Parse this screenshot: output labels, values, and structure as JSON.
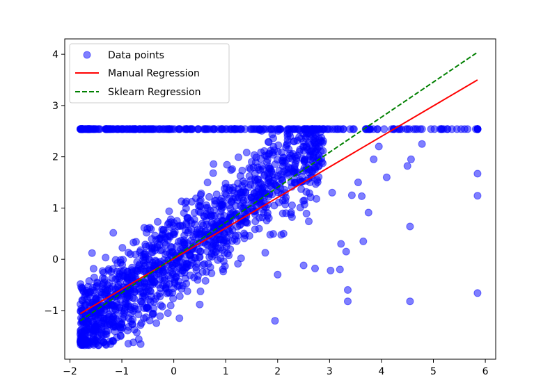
{
  "chart_data": {
    "type": "scatter",
    "xlim": [
      -2.1,
      6.2
    ],
    "ylim": [
      -1.95,
      4.3
    ],
    "xticks": [
      -2,
      -1,
      0,
      1,
      2,
      3,
      4,
      5,
      6
    ],
    "yticks": [
      -1,
      0,
      1,
      2,
      3,
      4
    ],
    "xtick_labels": [
      "−2",
      "−1",
      "0",
      "1",
      "2",
      "3",
      "4",
      "5",
      "6"
    ],
    "ytick_labels": [
      "−1",
      "0",
      "1",
      "2",
      "3",
      "4"
    ],
    "grid": false,
    "legend_position": "upper-left",
    "series": [
      {
        "name": "Data points",
        "kind": "scatter",
        "color": "#0000ff",
        "alpha": 0.5,
        "cap_value": 2.54,
        "cloud_slope": 0.8,
        "cloud_intercept": 0.0,
        "cloud_spread": 0.45,
        "cloud_x_range": [
          -1.8,
          2.9
        ],
        "cloud_count": 1400,
        "capped_x_range": [
          -1.8,
          5.85
        ],
        "outliers": [
          {
            "x": 5.85,
            "y": 1.67
          },
          {
            "x": 5.85,
            "y": 1.24
          },
          {
            "x": 5.85,
            "y": -0.66
          },
          {
            "x": 4.55,
            "y": 0.64
          },
          {
            "x": 4.55,
            "y": -0.82
          },
          {
            "x": 4.5,
            "y": 1.82
          },
          {
            "x": 4.57,
            "y": 1.95
          },
          {
            "x": 4.1,
            "y": 1.6
          },
          {
            "x": 3.75,
            "y": 0.91
          },
          {
            "x": 3.65,
            "y": 0.35
          },
          {
            "x": 3.62,
            "y": 1.23
          },
          {
            "x": 3.35,
            "y": -0.6
          },
          {
            "x": 3.35,
            "y": -0.82
          },
          {
            "x": 3.22,
            "y": 0.3
          },
          {
            "x": 3.2,
            "y": -0.2
          },
          {
            "x": 3.02,
            "y": -0.22
          },
          {
            "x": 3.32,
            "y": 0.15
          },
          {
            "x": 3.43,
            "y": 1.25
          },
          {
            "x": 2.6,
            "y": 0.74
          },
          {
            "x": 4.78,
            "y": 2.25
          },
          {
            "x": 3.55,
            "y": 1.5
          },
          {
            "x": 3.95,
            "y": 2.2
          },
          {
            "x": 3.85,
            "y": 1.95
          },
          {
            "x": 3.05,
            "y": 1.3
          },
          {
            "x": 1.95,
            "y": -1.2
          },
          {
            "x": 2.0,
            "y": -0.3
          },
          {
            "x": 2.5,
            "y": -0.12
          },
          {
            "x": 2.72,
            "y": -0.18
          }
        ]
      },
      {
        "name": "Manual Regression",
        "kind": "line",
        "color": "#ff0000",
        "dash": "solid",
        "x": [
          -1.8,
          5.85
        ],
        "y": [
          -1.06,
          3.5
        ]
      },
      {
        "name": "Sklearn Regression",
        "kind": "line",
        "color": "#008000",
        "dash": "dashed",
        "x": [
          -1.8,
          5.85
        ],
        "y": [
          -1.2,
          4.04
        ]
      }
    ]
  }
}
